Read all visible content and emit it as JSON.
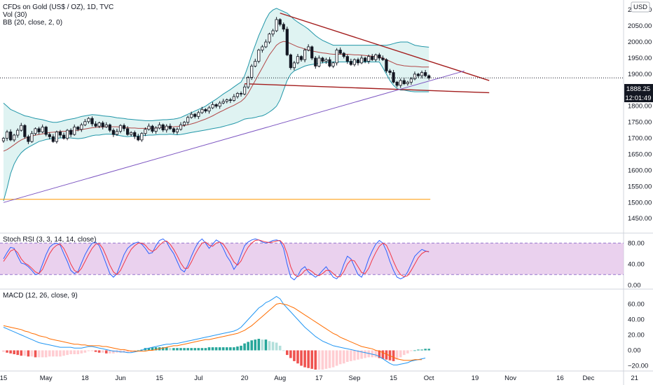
{
  "header": {
    "title": "CFDs on Gold (US$ / OZ), 1D, TVC",
    "vol_label": "Vol (30)",
    "bb_label": "BB (20, close, 2, 0)",
    "currency": "USD",
    "price_label": "1888.25",
    "countdown": "12:01:49"
  },
  "chart_data": [
    {
      "type": "candlestick",
      "title": "CFDs on Gold (US$ / OZ), 1D, TVC",
      "ylim": [
        1420,
        2120
      ],
      "y_ticks": [
        1450,
        1500,
        1550,
        1600,
        1650,
        1700,
        1750,
        1800,
        1850,
        1900,
        1950,
        2000,
        2050,
        2100
      ],
      "y_tick_labels": [
        "1450.00",
        "1500.00",
        "1550.00",
        "1600.00",
        "1650.00",
        "1700.00",
        "1750.00",
        "1800.00",
        "1850.00",
        "1900.00",
        "1950.00",
        "2000.00",
        "2050.00",
        "2100.00"
      ],
      "x_tick_labels": [
        "15",
        "May",
        "18",
        "Jun",
        "15",
        "Jul",
        "20",
        "Aug",
        "17",
        "Sep",
        "15",
        "Oct",
        "19",
        "Nov",
        "16",
        "Dec",
        "21"
      ],
      "x_tick_index": [
        0,
        12,
        23,
        33,
        44,
        55,
        68,
        78,
        89,
        99,
        110,
        120,
        133,
        143,
        157,
        165,
        178
      ],
      "close": [
        1700,
        1720,
        1695,
        1710,
        1725,
        1740,
        1705,
        1690,
        1715,
        1730,
        1720,
        1735,
        1712,
        1705,
        1690,
        1720,
        1710,
        1700,
        1725,
        1712,
        1735,
        1728,
        1742,
        1752,
        1762,
        1745,
        1738,
        1748,
        1736,
        1742,
        1725,
        1712,
        1722,
        1740,
        1730,
        1712,
        1718,
        1706,
        1695,
        1715,
        1728,
        1738,
        1722,
        1732,
        1742,
        1726,
        1738,
        1730,
        1720,
        1728,
        1742,
        1750,
        1765,
        1775,
        1768,
        1780,
        1790,
        1785,
        1795,
        1805,
        1800,
        1810,
        1815,
        1820,
        1818,
        1830,
        1840,
        1838,
        1860,
        1890,
        1925,
        1940,
        1975,
        1985,
        2000,
        2025,
        2035,
        2070,
        2055,
        2040,
        1960,
        1920,
        1935,
        1955,
        1945,
        1975,
        1985,
        1950,
        1925,
        1950,
        1940,
        1945,
        1925,
        1935,
        1975,
        1965,
        1955,
        1940,
        1930,
        1945,
        1935,
        1950,
        1940,
        1955,
        1945,
        1960,
        1950,
        1945,
        1910,
        1905,
        1875,
        1865,
        1880,
        1870,
        1875,
        1885,
        1900,
        1895,
        1905,
        1895,
        1888
      ],
      "bb_upper": [
        1810,
        1800,
        1790,
        1785,
        1780,
        1775,
        1770,
        1768,
        1765,
        1762,
        1760,
        1758,
        1755,
        1752,
        1750,
        1750,
        1752,
        1755,
        1758,
        1760,
        1762,
        1765,
        1768,
        1770,
        1772,
        1774,
        1773,
        1772,
        1770,
        1769,
        1768,
        1766,
        1764,
        1763,
        1762,
        1760,
        1759,
        1758,
        1757,
        1756,
        1755,
        1755,
        1755,
        1756,
        1757,
        1758,
        1758,
        1759,
        1760,
        1762,
        1765,
        1770,
        1775,
        1780,
        1785,
        1790,
        1795,
        1800,
        1808,
        1815,
        1822,
        1830,
        1838,
        1845,
        1852,
        1860,
        1868,
        1875,
        1895,
        1925,
        1960,
        1990,
        2020,
        2045,
        2070,
        2090,
        2100,
        2105,
        2100,
        2095,
        2090,
        2080,
        2070,
        2062,
        2055,
        2048,
        2040,
        2030,
        2020,
        2012,
        2005,
        2000,
        1995,
        1990,
        1990,
        1990,
        1990,
        1990,
        1990,
        1990,
        1990,
        1990,
        1990,
        1990,
        1990,
        1990,
        1990,
        1990,
        1990,
        1992,
        1995,
        1998,
        2000,
        2000,
        2000,
        1995,
        1990,
        1988,
        1986,
        1985,
        1984
      ],
      "bb_lower": [
        1505,
        1545,
        1590,
        1620,
        1640,
        1655,
        1665,
        1672,
        1678,
        1684,
        1690,
        1693,
        1696,
        1698,
        1700,
        1700,
        1701,
        1702,
        1702,
        1701,
        1700,
        1699,
        1700,
        1702,
        1705,
        1708,
        1710,
        1710,
        1712,
        1713,
        1713,
        1712,
        1710,
        1708,
        1706,
        1705,
        1706,
        1706,
        1707,
        1708,
        1709,
        1710,
        1710,
        1711,
        1712,
        1712,
        1712,
        1713,
        1712,
        1711,
        1712,
        1714,
        1716,
        1718,
        1720,
        1722,
        1724,
        1726,
        1728,
        1730,
        1732,
        1734,
        1737,
        1740,
        1743,
        1746,
        1750,
        1755,
        1760,
        1762,
        1763,
        1765,
        1768,
        1770,
        1775,
        1782,
        1790,
        1800,
        1820,
        1850,
        1880,
        1900,
        1910,
        1915,
        1920,
        1925,
        1928,
        1930,
        1932,
        1934,
        1935,
        1936,
        1937,
        1938,
        1938,
        1938,
        1938,
        1938,
        1938,
        1938,
        1938,
        1938,
        1938,
        1938,
        1938,
        1938,
        1938,
        1920,
        1900,
        1880,
        1865,
        1855,
        1850,
        1850,
        1848,
        1846,
        1845,
        1845,
        1845,
        1845,
        1845
      ],
      "ma": [
        1660,
        1665,
        1672,
        1680,
        1688,
        1695,
        1700,
        1704,
        1707,
        1710,
        1712,
        1714,
        1716,
        1718,
        1719,
        1720,
        1721,
        1722,
        1722,
        1723,
        1724,
        1725,
        1727,
        1729,
        1731,
        1733,
        1734,
        1735,
        1735,
        1736,
        1736,
        1736,
        1736,
        1735,
        1734,
        1733,
        1732,
        1732,
        1731,
        1731,
        1731,
        1731,
        1732,
        1732,
        1733,
        1734,
        1735,
        1736,
        1736,
        1737,
        1738,
        1740,
        1742,
        1745,
        1748,
        1752,
        1756,
        1760,
        1765,
        1770,
        1776,
        1782,
        1787,
        1793,
        1798,
        1803,
        1809,
        1815,
        1825,
        1840,
        1860,
        1880,
        1900,
        1920,
        1940,
        1960,
        1975,
        1990,
        1998,
        2002,
        2000,
        1995,
        1990,
        1985,
        1982,
        1978,
        1975,
        1972,
        1970,
        1968,
        1966,
        1965,
        1963,
        1962,
        1962,
        1962,
        1962,
        1962,
        1961,
        1960,
        1960,
        1959,
        1958,
        1957,
        1956,
        1955,
        1954,
        1950,
        1945,
        1940,
        1935,
        1930,
        1928,
        1926,
        1925,
        1924,
        1924,
        1923,
        1922,
        1922,
        1922
      ],
      "trendlines": [
        {
          "from": [
            78,
            2090
          ],
          "to": [
            137,
            1880
          ],
          "color": "#a31d1d"
        },
        {
          "from": [
            68,
            1870
          ],
          "to": [
            137,
            1842
          ],
          "color": "#a31d1d"
        },
        {
          "from": [
            0,
            1500
          ],
          "to": [
            130,
            1910
          ],
          "color": "#7e57c2"
        }
      ],
      "horizontal_line": {
        "y": 1510,
        "color": "#ff9800"
      },
      "price_line": 1888.25
    },
    {
      "type": "line",
      "title": "Stoch RSI (3, 3, 14, 14, close)",
      "ylim": [
        -5,
        95
      ],
      "y_ticks": [
        0,
        40,
        80
      ],
      "y_tick_labels": [
        "0.00",
        "40.00",
        "80.00"
      ],
      "band": [
        20,
        80
      ],
      "band_color": "#e1bee7",
      "series": [
        {
          "color": "#2962ff",
          "values": [
            50,
            62,
            72,
            70,
            55,
            42,
            40,
            35,
            28,
            20,
            22,
            40,
            58,
            72,
            78,
            80,
            76,
            60,
            45,
            28,
            22,
            26,
            42,
            58,
            70,
            80,
            82,
            75,
            58,
            40,
            22,
            15,
            22,
            40,
            58,
            70,
            76,
            80,
            82,
            78,
            70,
            60,
            62,
            75,
            85,
            88,
            82,
            70,
            60,
            45,
            30,
            25,
            38,
            55,
            70,
            82,
            88,
            80,
            70,
            78,
            86,
            82,
            70,
            55,
            45,
            30,
            40,
            58,
            75,
            82,
            86,
            88,
            86,
            82,
            80,
            82,
            85,
            86,
            84,
            70,
            40,
            15,
            10,
            18,
            30,
            35,
            25,
            20,
            15,
            20,
            28,
            35,
            25,
            15,
            12,
            20,
            40,
            55,
            50,
            35,
            20,
            15,
            30,
            50,
            65,
            78,
            85,
            80,
            65,
            45,
            28,
            15,
            12,
            15,
            25,
            40,
            55,
            62,
            68,
            65,
            63
          ]
        },
        {
          "color": "#f23645",
          "values": [
            45,
            55,
            65,
            68,
            62,
            50,
            42,
            38,
            32,
            25,
            22,
            30,
            45,
            60,
            70,
            76,
            78,
            70,
            56,
            40,
            28,
            24,
            32,
            45,
            58,
            70,
            78,
            79,
            70,
            55,
            38,
            25,
            20,
            28,
            42,
            56,
            68,
            75,
            80,
            80,
            76,
            68,
            64,
            68,
            76,
            82,
            84,
            78,
            68,
            56,
            42,
            32,
            32,
            44,
            58,
            70,
            80,
            82,
            76,
            74,
            80,
            82,
            78,
            68,
            56,
            44,
            38,
            46,
            60,
            72,
            80,
            85,
            86,
            84,
            82,
            81,
            82,
            84,
            85,
            78,
            60,
            35,
            20,
            16,
            20,
            28,
            30,
            26,
            20,
            18,
            22,
            28,
            28,
            22,
            16,
            16,
            26,
            40,
            48,
            46,
            35,
            24,
            22,
            32,
            48,
            62,
            74,
            80,
            76,
            62,
            45,
            30,
            20,
            16,
            18,
            28,
            40,
            52,
            60,
            64,
            64
          ]
        }
      ]
    },
    {
      "type": "bar",
      "title": "MACD (12, 26, close, 9)",
      "ylim": [
        -25,
        75
      ],
      "y_ticks": [
        -20,
        0,
        20,
        40,
        60
      ],
      "y_tick_labels": [
        "−20.00",
        "0.00",
        "20.00",
        "40.00",
        "60.00"
      ],
      "macd": [
        30,
        28,
        26,
        24,
        22,
        20,
        18,
        16,
        14,
        12,
        10,
        9,
        8,
        7,
        6,
        5,
        4,
        4,
        4,
        4,
        3,
        3,
        3,
        4,
        5,
        5,
        4,
        3,
        2,
        1,
        0,
        -1,
        -1,
        -2,
        -2,
        -3,
        -3,
        -2,
        -1,
        0,
        2,
        3,
        4,
        5,
        6,
        7,
        8,
        8,
        9,
        9,
        10,
        11,
        12,
        13,
        14,
        15,
        16,
        17,
        18,
        19,
        20,
        21,
        22,
        23,
        24,
        25,
        27,
        30,
        35,
        40,
        45,
        50,
        55,
        58,
        62,
        64,
        67,
        70,
        67,
        60,
        55,
        50,
        45,
        40,
        35,
        30,
        26,
        22,
        18,
        15,
        12,
        10,
        8,
        6,
        5,
        4,
        3,
        2,
        1,
        0,
        -1,
        -2,
        -3,
        -4,
        -5,
        -6,
        -8,
        -11,
        -14,
        -17,
        -19,
        -19,
        -18,
        -17,
        -16,
        -14,
        -13,
        -12,
        -11,
        -10
      ],
      "signal": [
        32,
        31,
        30,
        29,
        28,
        27,
        25,
        24,
        22,
        21,
        19,
        18,
        17,
        15,
        14,
        13,
        12,
        11,
        10,
        9,
        8,
        8,
        7,
        7,
        6,
        6,
        6,
        6,
        5,
        5,
        4,
        3,
        2,
        1,
        1,
        0,
        -1,
        -1,
        -1,
        -1,
        -1,
        0,
        0,
        1,
        2,
        3,
        4,
        5,
        6,
        6,
        7,
        8,
        9,
        10,
        11,
        12,
        13,
        14,
        14,
        15,
        16,
        17,
        18,
        19,
        20,
        21,
        22,
        24,
        26,
        29,
        32,
        36,
        40,
        44,
        48,
        52,
        56,
        60,
        61,
        60,
        59,
        57,
        55,
        52,
        49,
        46,
        43,
        40,
        37,
        34,
        31,
        28,
        25,
        22,
        20,
        17,
        15,
        13,
        11,
        9,
        7,
        5,
        4,
        3,
        2,
        0,
        -1,
        -3,
        -5,
        -7,
        -9,
        -11,
        -12,
        -13,
        -13,
        -13,
        -12,
        -12,
        -12
      ],
      "histogram": [
        -2,
        -3,
        -4,
        -5,
        -6,
        -7,
        -7,
        -8,
        -8,
        -9,
        -9,
        -9,
        -9,
        -8,
        -8,
        -8,
        -8,
        -7,
        -6,
        -5,
        -5,
        -5,
        -4,
        -3,
        -1,
        -1,
        -2,
        -3,
        -3,
        -4,
        -4,
        -4,
        -3,
        -3,
        -3,
        -3,
        -2,
        -1,
        0,
        1,
        3,
        3,
        4,
        4,
        4,
        4,
        4,
        3,
        3,
        3,
        3,
        3,
        3,
        3,
        3,
        3,
        3,
        3,
        4,
        4,
        4,
        4,
        4,
        4,
        4,
        4,
        5,
        6,
        9,
        11,
        13,
        14,
        15,
        14,
        14,
        12,
        11,
        10,
        6,
        0,
        -6,
        -10,
        -14,
        -17,
        -20,
        -22,
        -23,
        -24,
        -25,
        -25,
        -25,
        -24,
        -23,
        -22,
        -20,
        -18,
        -17,
        -15,
        -14,
        -13,
        -12,
        -11,
        -10,
        -9,
        -9,
        -9,
        -10,
        -11,
        -12,
        -13,
        -14,
        -12,
        -9,
        -6,
        -4,
        -1,
        0,
        1,
        1,
        2,
        2
      ]
    }
  ]
}
